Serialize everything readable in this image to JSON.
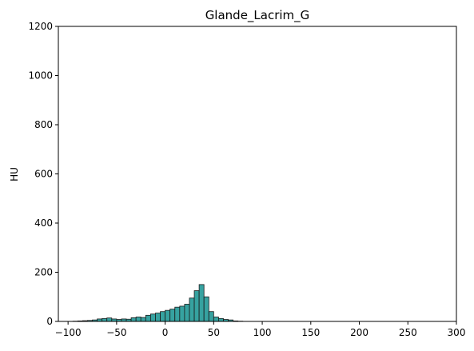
{
  "chart_data": {
    "type": "bar",
    "title": "Glande_Lacrim_G",
    "xlabel": "",
    "ylabel": "HU",
    "xlim": [
      -110,
      300
    ],
    "ylim": [
      0,
      1200
    ],
    "x_ticks": [
      -100,
      -50,
      0,
      50,
      100,
      150,
      200,
      250,
      300
    ],
    "y_ticks": [
      0,
      200,
      400,
      600,
      800,
      1000,
      1200
    ],
    "x_tick_labels": [
      "−100",
      "−50",
      "0",
      "50",
      "100",
      "150",
      "200",
      "250",
      "300"
    ],
    "y_tick_labels": [
      "0",
      "200",
      "400",
      "600",
      "800",
      "1000",
      "1200"
    ],
    "grid": false,
    "bar_color": "#36a2a0",
    "edge_color": "#1a1a1a",
    "bin_width": 5,
    "bin_starts": [
      -95,
      -90,
      -85,
      -80,
      -75,
      -70,
      -65,
      -60,
      -55,
      -50,
      -45,
      -40,
      -35,
      -30,
      -25,
      -20,
      -15,
      -10,
      -5,
      0,
      5,
      10,
      15,
      20,
      25,
      30,
      35,
      40,
      45,
      50,
      55,
      60,
      65,
      70,
      75,
      80,
      85,
      90
    ],
    "values": [
      1,
      2,
      3,
      4,
      6,
      10,
      12,
      14,
      10,
      8,
      10,
      9,
      15,
      18,
      16,
      25,
      30,
      34,
      40,
      45,
      50,
      58,
      62,
      70,
      95,
      125,
      150,
      100,
      40,
      18,
      12,
      8,
      6,
      2,
      1,
      0,
      0,
      0
    ]
  }
}
